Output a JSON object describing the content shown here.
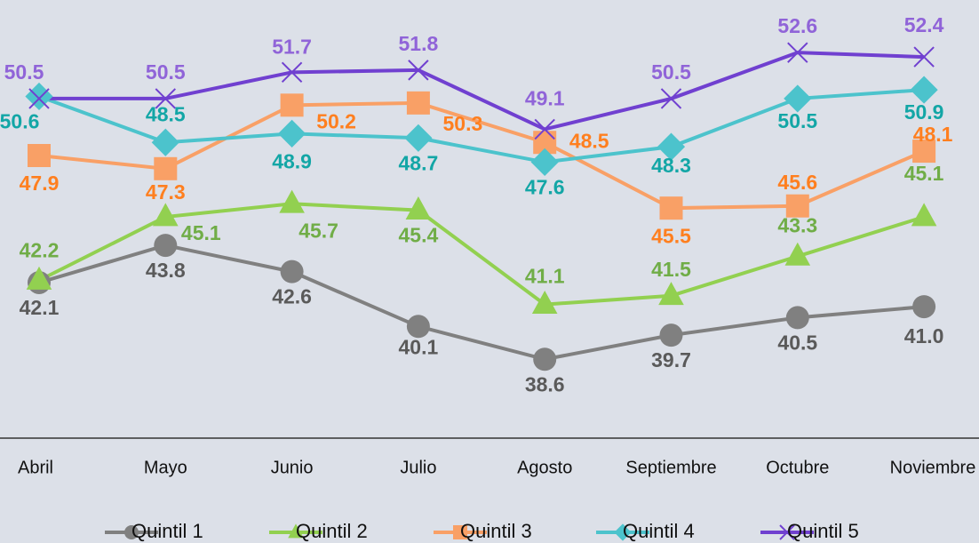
{
  "chart_data": {
    "type": "line",
    "categories": [
      "Abril",
      "Mayo",
      "Junio",
      "Julio",
      "Agosto",
      "Septiembre",
      "Octubre",
      "Noviembre"
    ],
    "ylim": [
      35,
      55
    ],
    "series": [
      {
        "name": "Quintil 1",
        "color": "#808080",
        "label_color": "#5a5a5a",
        "values": [
          42.1,
          43.8,
          42.6,
          40.1,
          38.6,
          39.7,
          40.5,
          41.0
        ],
        "value_labels": [
          "42.1",
          "43.8",
          "42.6",
          "40.1",
          "38.6",
          "39.7",
          "40.5",
          "41.0"
        ]
      },
      {
        "name": "Quintil 2",
        "color": "#92d050",
        "label_color": "#70ad47",
        "values": [
          42.2,
          45.1,
          45.7,
          45.4,
          41.1,
          41.5,
          43.3,
          45.1
        ]
      },
      {
        "name": "Quintil 3",
        "color": "#f9a066",
        "label_color": "#ff7f1f",
        "values": [
          47.9,
          47.3,
          50.2,
          50.3,
          48.5,
          45.5,
          45.6,
          48.1
        ]
      },
      {
        "name": "Quintil 4",
        "color": "#4cc3cc",
        "label_color": "#13a6a6",
        "values": [
          50.6,
          48.5,
          48.9,
          48.7,
          47.6,
          48.3,
          50.5,
          50.9
        ]
      },
      {
        "name": "Quintil 5",
        "color": "#7040d0",
        "label_color": "#9064d8",
        "values": [
          50.5,
          50.5,
          51.7,
          51.8,
          49.1,
          50.5,
          52.6,
          52.4
        ]
      }
    ]
  }
}
